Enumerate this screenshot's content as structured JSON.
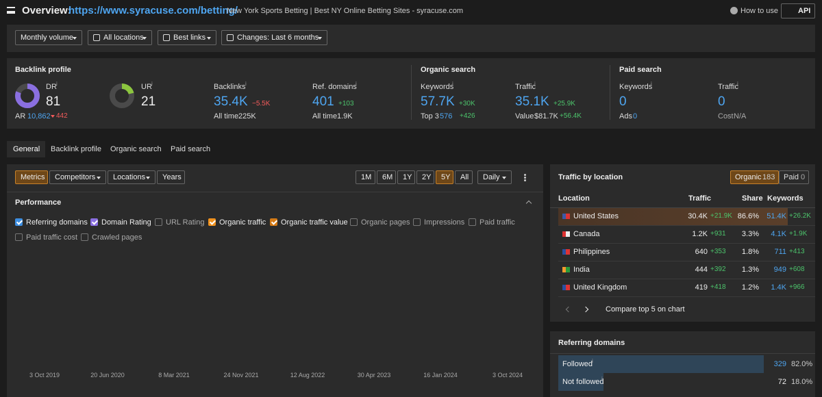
{
  "header": {
    "title": "Overview:",
    "url": "https://www.syracuse.com/betting/",
    "subtitle": "New York Sports Betting | Best NY Online Betting Sites - syracuse.com",
    "help": "How to use",
    "api": "API"
  },
  "info": "i",
  "filters": [
    "Monthly volume",
    "All locations",
    "Best links",
    "Changes: Last 6 months"
  ],
  "backlink_profile": {
    "title": "Backlink profile",
    "dr": {
      "label": "DR",
      "value": 81
    },
    "ar": {
      "label": "AR",
      "value": "10,862",
      "change": "442"
    },
    "ur": {
      "label": "UR",
      "value": 21
    },
    "backlinks": {
      "label": "Backlinks",
      "value": "35.4K",
      "change": "−5.5K",
      "sub_label": "All time",
      "sub_value": "225K"
    },
    "ref_domains": {
      "label": "Ref. domains",
      "value": "401",
      "change": "+103",
      "sub_label": "All time",
      "sub_value": "1.9K"
    }
  },
  "organic_search": {
    "title": "Organic search",
    "keywords": {
      "label": "Keywords",
      "value": "57.7K",
      "change": "+30K",
      "sub_label": "Top 3",
      "sub_value": "576",
      "sub_change": "+426"
    },
    "traffic": {
      "label": "Traffic",
      "value": "35.1K",
      "change": "+25.9K",
      "sub_label": "Value",
      "sub_value": "$81.7K",
      "sub_change": "+56.4K"
    }
  },
  "paid_search": {
    "title": "Paid search",
    "keywords": {
      "label": "Keywords",
      "value": 0,
      "sub_label": "Ads",
      "sub_value": 0
    },
    "traffic": {
      "label": "Traffic",
      "value": 0,
      "sub_label": "Cost",
      "sub_value": "N/A"
    }
  },
  "tabs": [
    "General",
    "Backlink profile",
    "Organic search",
    "Paid search"
  ],
  "performance": {
    "controls": [
      "Metrics",
      "Competitors",
      "Locations",
      "Years"
    ],
    "ranges": [
      "1M",
      "6M",
      "1Y",
      "2Y",
      "5Y",
      "All"
    ],
    "interval": "Daily",
    "title": "Performance",
    "metrics": [
      {
        "name": "Referring domains",
        "checked": true,
        "color": "#3d8ee0"
      },
      {
        "name": "Domain Rating",
        "checked": true,
        "color": "#8a6fe0"
      },
      {
        "name": "URL Rating",
        "checked": false,
        "color": "#888888"
      },
      {
        "name": "Organic traffic",
        "checked": true,
        "color": "#f0921e"
      },
      {
        "name": "Organic traffic value",
        "checked": true,
        "color": "#d47a16"
      },
      {
        "name": "Organic pages",
        "checked": false,
        "color": "#888888"
      },
      {
        "name": "Impressions",
        "checked": false,
        "color": "#888888"
      },
      {
        "name": "Paid traffic",
        "checked": false,
        "color": "#888888"
      },
      {
        "name": "Paid traffic cost",
        "checked": false,
        "color": "#888888"
      },
      {
        "name": "Crawled pages",
        "checked": false,
        "color": "#888888"
      }
    ],
    "x_labels": [
      "3 Oct 2019",
      "20 Jun 2020",
      "8 Mar 2021",
      "24 Nov 2021",
      "12 Aug 2022",
      "30 Apr 2023",
      "16 Jan 2024",
      "3 Oct 2024"
    ]
  },
  "traffic_by_location": {
    "title": "Traffic by location",
    "organic_label": "Organic",
    "organic_count": 183,
    "paid_label": "Paid",
    "paid_count": 0,
    "columns": [
      "Location",
      "Traffic",
      "Share",
      "Keywords"
    ],
    "rows": [
      {
        "country": "United States",
        "traffic": "30.4K",
        "traffic_change": "+21.9K",
        "share": "86.6%",
        "keywords": "51.4K",
        "keywords_change": "+26.2K"
      },
      {
        "country": "Canada",
        "traffic": "1.2K",
        "traffic_change": "+931",
        "share": "3.3%",
        "keywords": "4.1K",
        "keywords_change": "+1.9K"
      },
      {
        "country": "Philippines",
        "traffic": "640",
        "traffic_change": "+353",
        "share": "1.8%",
        "keywords": "711",
        "keywords_change": "+413"
      },
      {
        "country": "India",
        "traffic": "444",
        "traffic_change": "+392",
        "share": "1.3%",
        "keywords": "949",
        "keywords_change": "+608"
      },
      {
        "country": "United Kingdom",
        "traffic": "419",
        "traffic_change": "+418",
        "share": "1.2%",
        "keywords": "1.4K",
        "keywords_change": "+966"
      }
    ],
    "compare": "Compare top 5 on chart"
  },
  "referring_domains": {
    "title": "Referring domains",
    "rows": [
      {
        "label": "Followed",
        "value": 329,
        "share": "82.0%"
      },
      {
        "label": "Not followed",
        "value": 72,
        "share": "18.0%"
      }
    ]
  }
}
